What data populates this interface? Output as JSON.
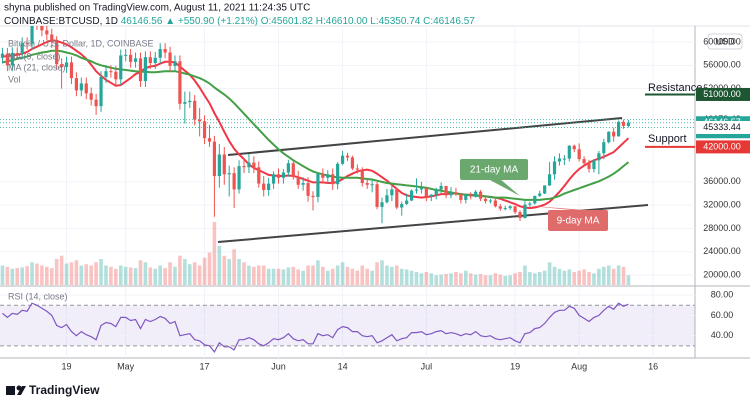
{
  "header": {
    "published": "shyna published on TradingView.com, August 11, 2021 11:24:35 UTC",
    "symbol": "COINBASE:BTCUSD, 1D",
    "last": "46146.56",
    "change": "▲ +550.90 (+1.21%)",
    "open": "O:45601.82",
    "high": "H:46610.00",
    "low": "L:45350.74",
    "close": "C:46146.57",
    "currency": "USD",
    "legend": "Bitcoin / U.S. Dollar, 1D, COINBASE"
  },
  "logo": "TradingView",
  "chart_data": {
    "type": "candlestick",
    "xlim": [
      -0.5,
      140.5
    ],
    "xticks": [
      {
        "value": 13,
        "label": "19"
      },
      {
        "value": 25,
        "label": "May"
      },
      {
        "value": 41,
        "label": "17"
      },
      {
        "value": 56,
        "label": "Jun"
      },
      {
        "value": 69,
        "label": "14"
      },
      {
        "value": 86,
        "label": "Jul"
      },
      {
        "value": 104,
        "label": "19"
      },
      {
        "value": 117,
        "label": "Aug"
      },
      {
        "value": 132,
        "label": "16"
      }
    ],
    "ylim": [
      18300,
      62750
    ],
    "yticks": [
      {
        "value": 20000,
        "label": "20000.00"
      },
      {
        "value": 24000,
        "label": "24000.00"
      },
      {
        "value": 28000,
        "label": "28000.00"
      },
      {
        "value": 32000,
        "label": "32000.00"
      },
      {
        "value": 36000,
        "label": "36000.00"
      },
      {
        "value": 52000,
        "label": "52000.00"
      },
      {
        "value": 56000,
        "label": "56000.00"
      },
      {
        "value": 60000,
        "label": "60000.00"
      }
    ],
    "grid": true,
    "up_color": "#26a69a",
    "down_color": "#ef5350",
    "open": [
      57300,
      58000,
      56000,
      58100,
      58000,
      59800,
      59700,
      63500,
      63100,
      62000,
      61300,
      60000,
      56200,
      55700,
      56500,
      53800,
      51700,
      52900,
      51200,
      50100,
      49000,
      54000,
      55000,
      54900,
      53600,
      57700,
      57800,
      56600,
      57200,
      53300,
      57400,
      56400,
      57300,
      58800,
      58200,
      55900,
      56700,
      49400,
      49700,
      49900,
      46700,
      46400,
      43500,
      42900,
      37000,
      40700,
      37300,
      37500,
      34700,
      38700,
      38500,
      39300,
      38500,
      35700,
      34600,
      35700,
      37300,
      36700,
      37600,
      39200,
      36900,
      35500,
      35800,
      33600,
      33400,
      37400,
      36700,
      37300,
      35600,
      39100,
      40500,
      40200,
      38300,
      38100,
      35800,
      35500,
      35600,
      31700,
      32500,
      33700,
      34700,
      31600,
      32200,
      32800,
      34500,
      34700,
      35000,
      33500,
      33800,
      34700,
      35300,
      33700,
      34200,
      33900,
      32900,
      33800,
      33500,
      34300,
      33100,
      32700,
      32800,
      31800,
      31400,
      31500,
      31800,
      30800,
      29800,
      32100,
      32300,
      33600,
      34000,
      35400,
      37300,
      39500,
      40000,
      40000,
      42200,
      41600,
      39900,
      39200,
      38200,
      39700,
      40900,
      42800,
      44600,
      43800,
      46300,
      45601.82
    ],
    "high": [
      59000,
      59000,
      59100,
      59100,
      60800,
      60800,
      64500,
      64500,
      64100,
      63000,
      62300,
      61000,
      57200,
      57500,
      57500,
      54800,
      53900,
      53900,
      52200,
      51100,
      55000,
      56000,
      56000,
      55900,
      58700,
      58800,
      58800,
      58200,
      58200,
      58400,
      58400,
      58300,
      59800,
      59800,
      59200,
      57700,
      57700,
      51500,
      51500,
      50900,
      48700,
      47400,
      45800,
      43900,
      42500,
      42000,
      38800,
      38500,
      39700,
      40000,
      40800,
      40400,
      39500,
      37000,
      36700,
      37800,
      38300,
      38200,
      39800,
      39500,
      37900,
      36800,
      36800,
      34400,
      37600,
      38300,
      38000,
      38300,
      39400,
      41300,
      41000,
      40500,
      39000,
      38500,
      36400,
      36400,
      36000,
      33300,
      34800,
      35300,
      35000,
      32600,
      34000,
      34700,
      36600,
      36000,
      35000,
      33900,
      35000,
      35900,
      35300,
      35100,
      35000,
      34100,
      34000,
      34200,
      34600,
      34600,
      33300,
      33100,
      33200,
      32200,
      31900,
      32000,
      31900,
      31100,
      32800,
      32600,
      33600,
      34500,
      35400,
      39400,
      40400,
      40900,
      40600,
      42300,
      42400,
      42600,
      40400,
      39800,
      39900,
      41300,
      43400,
      44700,
      45300,
      46500,
      46700,
      46610
    ],
    "low": [
      56300,
      55000,
      55000,
      57000,
      57000,
      58700,
      58700,
      62100,
      61000,
      60300,
      59000,
      55200,
      52000,
      54700,
      52800,
      50700,
      50700,
      50200,
      49100,
      47500,
      48000,
      53000,
      53900,
      52600,
      52600,
      56700,
      55600,
      55600,
      52300,
      52300,
      55400,
      55400,
      56300,
      57200,
      54900,
      54900,
      48400,
      46000,
      48700,
      45700,
      43800,
      42500,
      42000,
      30000,
      35000,
      35500,
      33500,
      31500,
      34000,
      37500,
      37500,
      37500,
      35000,
      33500,
      33600,
      34800,
      35700,
      35700,
      36900,
      36400,
      34800,
      34500,
      32600,
      31100,
      32500,
      35700,
      35700,
      34600,
      34700,
      38900,
      39600,
      38000,
      37400,
      35200,
      34800,
      34200,
      31300,
      28900,
      32300,
      32700,
      31300,
      30200,
      32000,
      32700,
      34000,
      34000,
      32700,
      32700,
      33000,
      34000,
      33200,
      33200,
      33600,
      32300,
      32300,
      33000,
      33300,
      32700,
      32300,
      32300,
      31600,
      31000,
      31100,
      31200,
      30500,
      29300,
      29700,
      31700,
      32100,
      33400,
      33900,
      35300,
      36400,
      38800,
      38900,
      39500,
      41100,
      39500,
      38800,
      37600,
      37600,
      37300,
      39900,
      42600,
      42900,
      43800,
      45100,
      45350.74
    ],
    "close": [
      58000,
      56000,
      58100,
      58000,
      59800,
      59700,
      63500,
      63100,
      62000,
      61300,
      60000,
      56200,
      55700,
      56500,
      53800,
      51700,
      52900,
      51200,
      50100,
      49000,
      54000,
      55000,
      54900,
      53600,
      57700,
      57800,
      56600,
      57200,
      53300,
      57400,
      56400,
      57300,
      58800,
      58200,
      55900,
      56700,
      49400,
      49700,
      49900,
      46700,
      46400,
      43500,
      42900,
      37000,
      40700,
      37300,
      37500,
      34700,
      38700,
      38500,
      39300,
      38500,
      35700,
      34600,
      35700,
      37300,
      36700,
      37600,
      39200,
      36900,
      35500,
      35800,
      33600,
      33400,
      37400,
      36700,
      37300,
      35600,
      39100,
      40500,
      40200,
      38300,
      38100,
      35800,
      35500,
      35600,
      31700,
      32500,
      33700,
      34700,
      31600,
      32200,
      32800,
      34500,
      34700,
      35000,
      33500,
      33800,
      34700,
      35300,
      33700,
      34200,
      33900,
      32900,
      33800,
      33500,
      34300,
      33100,
      32700,
      32800,
      31800,
      31400,
      31500,
      31800,
      30800,
      29800,
      32100,
      32300,
      33600,
      34000,
      35400,
      37300,
      39500,
      40000,
      40000,
      42200,
      41600,
      39900,
      39200,
      38200,
      39700,
      40900,
      42800,
      44600,
      43800,
      46300,
      45600,
      46146.57
    ],
    "series": [
      {
        "name": "MA (9, close)",
        "color": "#f23645",
        "values": [
          57500,
          57600,
          57700,
          57800,
          58000,
          58300,
          58800,
          59200,
          59600,
          60000,
          60300,
          60200,
          59900,
          59600,
          59100,
          58500,
          57900,
          57100,
          56100,
          55000,
          54200,
          53500,
          53000,
          52500,
          52600,
          53200,
          53800,
          54500,
          54900,
          55500,
          55800,
          55900,
          56300,
          56600,
          56600,
          56500,
          55800,
          55100,
          54400,
          53400,
          52200,
          50800,
          49500,
          47800,
          46300,
          44600,
          43000,
          41700,
          40700,
          39900,
          39000,
          38400,
          38000,
          37600,
          37200,
          37100,
          37000,
          37000,
          37100,
          37000,
          36800,
          36500,
          36200,
          35900,
          35900,
          35900,
          35800,
          35800,
          36000,
          36500,
          37000,
          37400,
          37800,
          38000,
          38100,
          37900,
          37400,
          36800,
          36200,
          35500,
          34800,
          34100,
          33700,
          33500,
          33400,
          33300,
          33400,
          33500,
          33700,
          33900,
          33900,
          34000,
          34000,
          33900,
          33800,
          33800,
          33700,
          33600,
          33500,
          33400,
          33300,
          33100,
          32800,
          32500,
          32200,
          31800,
          31600,
          31500,
          31600,
          31800,
          32100,
          32600,
          33400,
          34300,
          35300,
          36400,
          37400,
          38200,
          38800,
          39300,
          39700,
          40000,
          40300,
          40700,
          41100,
          41900,
          42700,
          43500
        ]
      },
      {
        "name": "MA (21, close)",
        "color": "#43a047",
        "values": [
          56500,
          56700,
          56900,
          57100,
          57300,
          57500,
          57800,
          58000,
          58200,
          58300,
          58500,
          58500,
          58400,
          58200,
          58000,
          57700,
          57300,
          57000,
          56700,
          56300,
          56000,
          55800,
          55600,
          55400,
          55300,
          55200,
          55100,
          55000,
          54900,
          54900,
          54800,
          54800,
          54900,
          55000,
          55000,
          55000,
          54800,
          54600,
          54400,
          54100,
          53800,
          53400,
          52900,
          52200,
          51600,
          51000,
          50300,
          49500,
          48600,
          47700,
          46800,
          45900,
          45000,
          44100,
          43200,
          42400,
          41600,
          40900,
          40300,
          39700,
          39200,
          38700,
          38200,
          37800,
          37500,
          37300,
          37100,
          36900,
          36800,
          36700,
          36700,
          36700,
          36700,
          36600,
          36500,
          36400,
          36200,
          36000,
          35800,
          35700,
          35600,
          35500,
          35400,
          35300,
          35200,
          35100,
          35000,
          34800,
          34600,
          34500,
          34300,
          34200,
          34000,
          33900,
          33800,
          33700,
          33600,
          33600,
          33500,
          33400,
          33300,
          33300,
          33300,
          33200,
          33100,
          33000,
          32900,
          32900,
          32900,
          32900,
          33000,
          33100,
          33300,
          33600,
          34000,
          34300,
          34600,
          34900,
          35200,
          35500,
          35800,
          36100,
          36500,
          36900,
          37400,
          38000,
          38700,
          39400
        ]
      }
    ],
    "volume": {
      "name": "Vol",
      "ylim": [
        0,
        100
      ],
      "values": [
        30,
        28,
        25,
        26,
        27,
        29,
        35,
        33,
        30,
        28,
        26,
        40,
        45,
        33,
        35,
        38,
        30,
        32,
        30,
        35,
        40,
        30,
        28,
        25,
        30,
        28,
        27,
        26,
        38,
        35,
        27,
        25,
        30,
        26,
        35,
        28,
        45,
        40,
        32,
        35,
        30,
        42,
        50,
        97,
        60,
        45,
        40,
        55,
        40,
        35,
        30,
        28,
        30,
        30,
        25,
        25,
        25,
        24,
        27,
        28,
        24,
        22,
        30,
        30,
        38,
        28,
        22,
        25,
        30,
        35,
        28,
        25,
        22,
        30,
        25,
        22,
        35,
        38,
        30,
        28,
        30,
        25,
        24,
        22,
        20,
        18,
        20,
        18,
        15,
        16,
        17,
        18,
        20,
        18,
        22,
        18,
        16,
        17,
        15,
        15,
        18,
        16,
        14,
        15,
        18,
        20,
        30,
        20,
        18,
        20,
        22,
        35,
        28,
        25,
        22,
        24,
        20,
        22,
        24,
        20,
        18,
        25,
        28,
        30,
        25,
        30,
        28,
        15
      ]
    },
    "price_lines": [
      {
        "value": 51000,
        "label": "51000.00",
        "color": "#1e5631",
        "style": "segment"
      },
      {
        "value": 46679.42,
        "color": "#ffffff",
        "text_color": "#131722",
        "style": "dotted"
      },
      {
        "value": 46146.57,
        "color": "#26a69a",
        "style": "dotted",
        "time": "12:35:27"
      },
      {
        "value": 45333.44,
        "color": "#ffffff",
        "text_color": "#131722",
        "style": "dotted"
      },
      {
        "value": 42000,
        "label": "42000.00",
        "color": "#e53935",
        "style": "segment"
      }
    ],
    "annotations": [
      {
        "text": "Resistance",
        "color": "#131722"
      },
      {
        "text": "Support",
        "color": "#131722"
      },
      {
        "text": "21-day MA",
        "color": "#6aa86e"
      },
      {
        "text": "9-day MA",
        "color": "#e06b6b"
      }
    ],
    "rsi": {
      "name": "RSI (14, close)",
      "color": "#7e57c2",
      "ylim": [
        18,
        88
      ],
      "band": [
        30,
        70
      ],
      "yticks": [
        {
          "value": 80,
          "label": "80.00"
        },
        {
          "value": 60,
          "label": "60.00"
        },
        {
          "value": 40,
          "label": "40.00"
        }
      ],
      "values": [
        62,
        58,
        62,
        61,
        65,
        64,
        72,
        70,
        67,
        64,
        60,
        50,
        48,
        51,
        44,
        40,
        44,
        41,
        39,
        36,
        50,
        53,
        52,
        49,
        58,
        58,
        55,
        56,
        47,
        56,
        54,
        56,
        59,
        57,
        52,
        54,
        40,
        41,
        42,
        36,
        35,
        31,
        30,
        24,
        33,
        29,
        29,
        26,
        36,
        36,
        38,
        36,
        32,
        30,
        33,
        37,
        36,
        38,
        42,
        37,
        35,
        36,
        32,
        32,
        42,
        40,
        41,
        38,
        46,
        49,
        48,
        44,
        44,
        40,
        39,
        40,
        33,
        35,
        38,
        41,
        35,
        37,
        38,
        43,
        43,
        44,
        41,
        42,
        44,
        45,
        42,
        43,
        42,
        40,
        42,
        41,
        44,
        40,
        39,
        40,
        37,
        36,
        37,
        38,
        35,
        33,
        42,
        43,
        47,
        48,
        52,
        58,
        63,
        65,
        65,
        69,
        67,
        60,
        57,
        54,
        58,
        60,
        65,
        69,
        66,
        72,
        69,
        71
      ]
    }
  }
}
